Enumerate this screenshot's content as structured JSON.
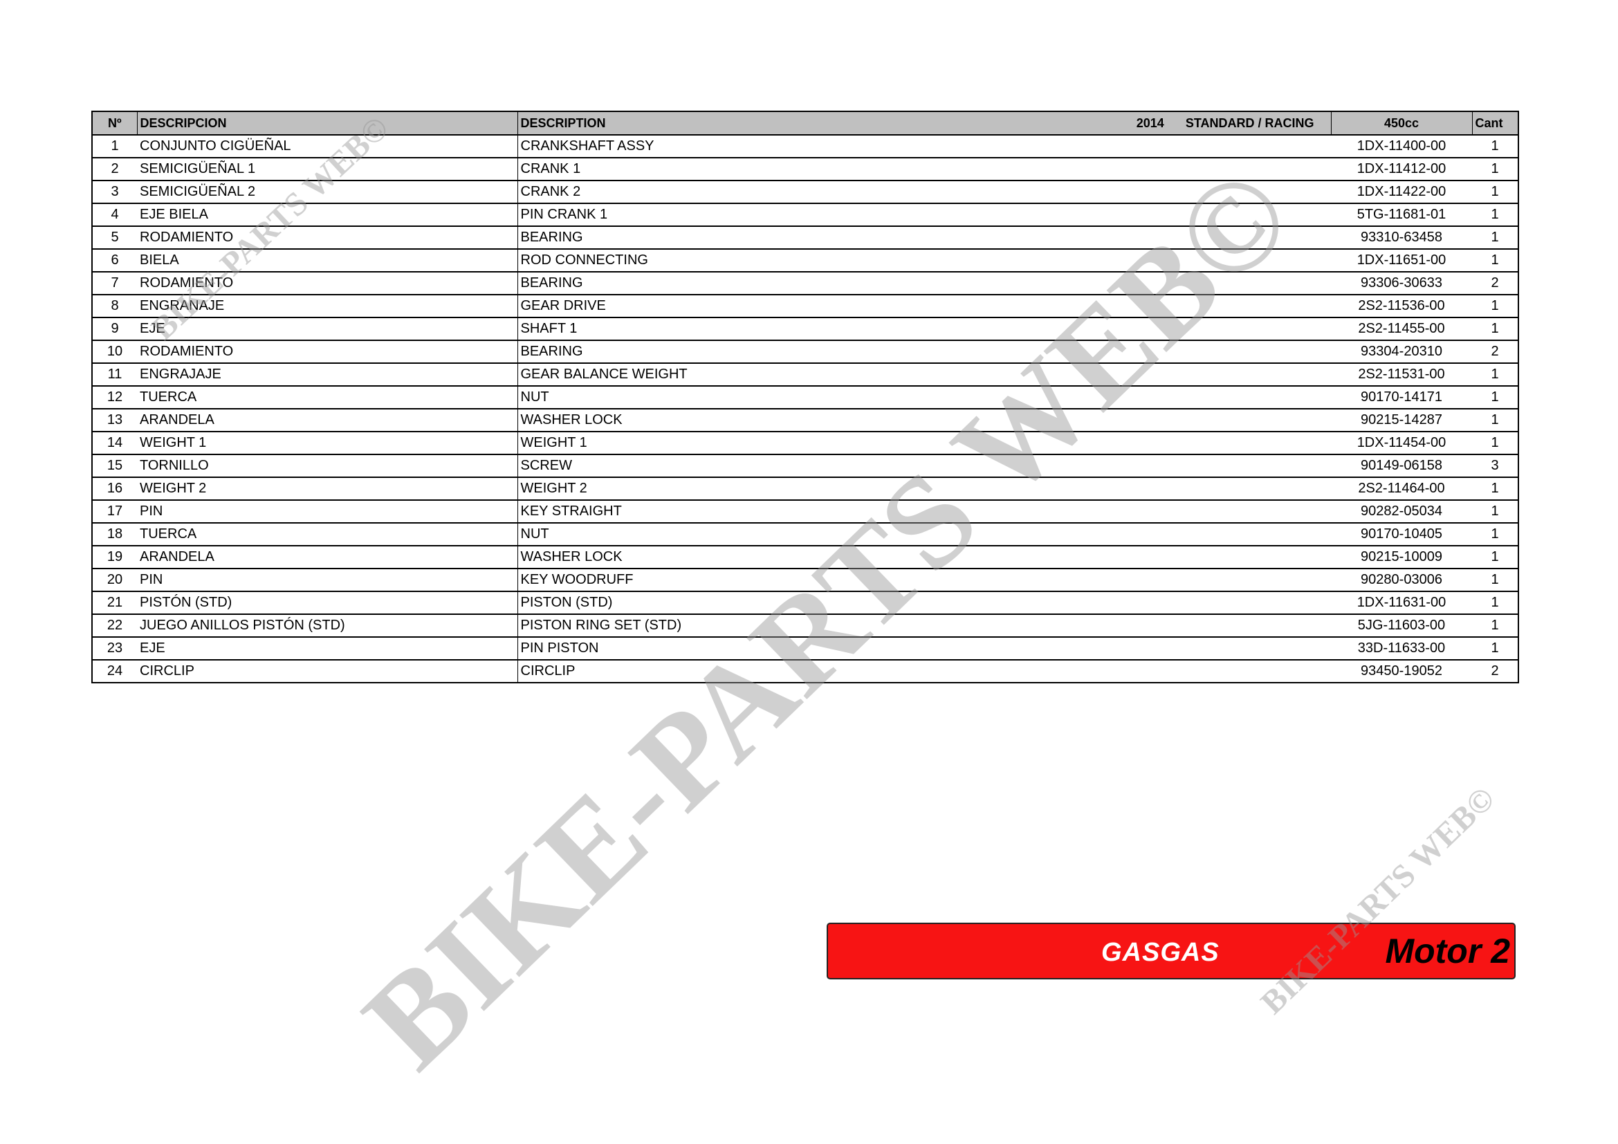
{
  "header": {
    "no": "Nº",
    "descripcion": "DESCRIPCION",
    "description": "DESCRIPTION",
    "year": "2014",
    "version": "STANDARD / RACING",
    "model": "450cc",
    "qty": "Cant"
  },
  "rows": [
    {
      "no": "1",
      "es": "CONJUNTO CIGÜEÑAL",
      "en": "CRANKSHAFT ASSY",
      "ref": "1DX-11400-00",
      "qty": "1"
    },
    {
      "no": "2",
      "es": "SEMICIGÜEÑAL 1",
      "en": "CRANK 1",
      "ref": "1DX-11412-00",
      "qty": "1"
    },
    {
      "no": "3",
      "es": "SEMICIGÜEÑAL 2",
      "en": "CRANK 2",
      "ref": "1DX-11422-00",
      "qty": "1"
    },
    {
      "no": "4",
      "es": "EJE BIELA",
      "en": "PIN CRANK 1",
      "ref": "5TG-11681-01",
      "qty": "1"
    },
    {
      "no": "5",
      "es": "RODAMIENTO",
      "en": "BEARING",
      "ref": "93310-63458",
      "qty": "1"
    },
    {
      "no": "6",
      "es": "BIELA",
      "en": "ROD CONNECTING",
      "ref": "1DX-11651-00",
      "qty": "1"
    },
    {
      "no": "7",
      "es": "RODAMIENTO",
      "en": "BEARING",
      "ref": "93306-30633",
      "qty": "2"
    },
    {
      "no": "8",
      "es": "ENGRANAJE",
      "en": "GEAR DRIVE",
      "ref": "2S2-11536-00",
      "qty": "1"
    },
    {
      "no": "9",
      "es": "EJE",
      "en": "SHAFT 1",
      "ref": "2S2-11455-00",
      "qty": "1"
    },
    {
      "no": "10",
      "es": "RODAMIENTO",
      "en": "BEARING",
      "ref": "93304-20310",
      "qty": "2"
    },
    {
      "no": "11",
      "es": "ENGRAJAJE",
      "en": "GEAR BALANCE WEIGHT",
      "ref": "2S2-11531-00",
      "qty": "1"
    },
    {
      "no": "12",
      "es": "TUERCA",
      "en": "NUT",
      "ref": "90170-14171",
      "qty": "1"
    },
    {
      "no": "13",
      "es": "ARANDELA",
      "en": "WASHER LOCK",
      "ref": "90215-14287",
      "qty": "1"
    },
    {
      "no": "14",
      "es": "WEIGHT 1",
      "en": "WEIGHT 1",
      "ref": "1DX-11454-00",
      "qty": "1"
    },
    {
      "no": "15",
      "es": "TORNILLO",
      "en": "SCREW",
      "ref": "90149-06158",
      "qty": "3"
    },
    {
      "no": "16",
      "es": "WEIGHT 2",
      "en": "WEIGHT 2",
      "ref": "2S2-11464-00",
      "qty": "1"
    },
    {
      "no": "17",
      "es": "PIN",
      "en": "KEY STRAIGHT",
      "ref": "90282-05034",
      "qty": "1"
    },
    {
      "no": "18",
      "es": "TUERCA",
      "en": "NUT",
      "ref": "90170-10405",
      "qty": "1"
    },
    {
      "no": "19",
      "es": "ARANDELA",
      "en": "WASHER LOCK",
      "ref": "90215-10009",
      "qty": "1"
    },
    {
      "no": "20",
      "es": "PIN",
      "en": "KEY WOODRUFF",
      "ref": "90280-03006",
      "qty": "1"
    },
    {
      "no": "21",
      "es": "PISTÓN (STD)",
      "en": "PISTON (STD)",
      "ref": "1DX-11631-00",
      "qty": "1"
    },
    {
      "no": "22",
      "es": "JUEGO ANILLOS PISTÓN (STD)",
      "en": "PISTON RING SET (STD)",
      "ref": "5JG-11603-00",
      "qty": "1"
    },
    {
      "no": "23",
      "es": "EJE",
      "en": "PIN PISTON",
      "ref": "33D-11633-00",
      "qty": "1"
    },
    {
      "no": "24",
      "es": "CIRCLIP",
      "en": "CIRCLIP",
      "ref": "93450-19052",
      "qty": "2"
    }
  ],
  "banner": {
    "brand": "GASGAS",
    "section": "Motor 2",
    "color": "#f71414"
  },
  "watermark": {
    "text": "BIKE-PARTS WEB©"
  }
}
